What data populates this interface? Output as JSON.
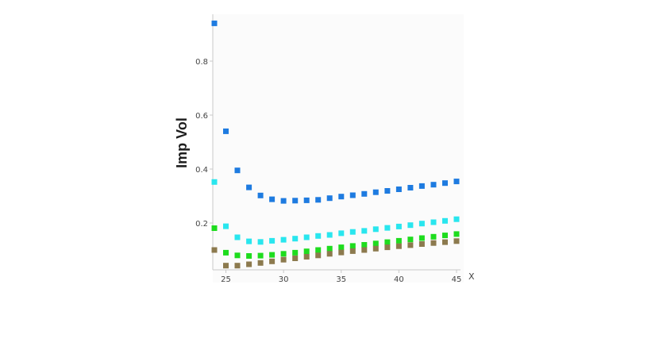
{
  "chart_data": {
    "type": "scatter",
    "title": "",
    "xlabel": "X",
    "ylabel": "Imp Vol",
    "xlim": [
      24,
      45
    ],
    "ylim": [
      0.03,
      0.95
    ],
    "x_ticks": [
      "25",
      "30",
      "35",
      "40",
      "45"
    ],
    "y_ticks": [
      "0.2",
      "0.4",
      "0.6",
      "0.8"
    ],
    "grid": false,
    "legend": "none",
    "marker": "square",
    "series": [
      {
        "color": "#1e7be0",
        "points": [
          [
            24,
            0.94
          ],
          [
            25,
            0.54
          ],
          [
            26,
            0.395
          ],
          [
            27,
            0.332
          ],
          [
            28,
            0.302
          ],
          [
            29,
            0.288
          ],
          [
            30,
            0.282
          ],
          [
            31,
            0.283
          ],
          [
            32,
            0.284
          ],
          [
            33,
            0.286
          ],
          [
            34,
            0.292
          ],
          [
            35,
            0.298
          ],
          [
            36,
            0.303
          ],
          [
            37,
            0.308
          ],
          [
            38,
            0.314
          ],
          [
            39,
            0.319
          ],
          [
            40,
            0.325
          ],
          [
            41,
            0.331
          ],
          [
            42,
            0.337
          ],
          [
            43,
            0.342
          ],
          [
            44,
            0.348
          ],
          [
            45,
            0.354
          ]
        ]
      },
      {
        "color": "#29e6ee",
        "points": [
          [
            24,
            0.352
          ],
          [
            25,
            0.188
          ],
          [
            26,
            0.147
          ],
          [
            27,
            0.132
          ],
          [
            28,
            0.13
          ],
          [
            29,
            0.134
          ],
          [
            30,
            0.138
          ],
          [
            31,
            0.142
          ],
          [
            32,
            0.147
          ],
          [
            33,
            0.152
          ],
          [
            34,
            0.156
          ],
          [
            35,
            0.162
          ],
          [
            36,
            0.167
          ],
          [
            37,
            0.171
          ],
          [
            38,
            0.177
          ],
          [
            39,
            0.182
          ],
          [
            40,
            0.187
          ],
          [
            41,
            0.192
          ],
          [
            42,
            0.198
          ],
          [
            43,
            0.203
          ],
          [
            44,
            0.208
          ],
          [
            45,
            0.214
          ]
        ]
      },
      {
        "color": "#1edc1e",
        "points": [
          [
            24,
            0.181
          ],
          [
            25,
            0.09
          ],
          [
            26,
            0.08
          ],
          [
            27,
            0.078
          ],
          [
            28,
            0.079
          ],
          [
            29,
            0.082
          ],
          [
            30,
            0.086
          ],
          [
            31,
            0.09
          ],
          [
            32,
            0.095
          ],
          [
            33,
            0.1
          ],
          [
            34,
            0.105
          ],
          [
            35,
            0.11
          ],
          [
            36,
            0.115
          ],
          [
            37,
            0.119
          ],
          [
            38,
            0.124
          ],
          [
            39,
            0.129
          ],
          [
            40,
            0.134
          ],
          [
            41,
            0.139
          ],
          [
            42,
            0.144
          ],
          [
            43,
            0.149
          ],
          [
            44,
            0.154
          ],
          [
            45,
            0.159
          ]
        ]
      },
      {
        "color": "#8c7a4e",
        "points": [
          [
            24,
            0.1
          ],
          [
            25,
            0.042
          ],
          [
            26,
            0.042
          ],
          [
            27,
            0.047
          ],
          [
            28,
            0.052
          ],
          [
            29,
            0.058
          ],
          [
            30,
            0.064
          ],
          [
            31,
            0.069
          ],
          [
            32,
            0.075
          ],
          [
            33,
            0.08
          ],
          [
            34,
            0.086
          ],
          [
            35,
            0.091
          ],
          [
            36,
            0.096
          ],
          [
            37,
            0.1
          ],
          [
            38,
            0.105
          ],
          [
            39,
            0.11
          ],
          [
            40,
            0.114
          ],
          [
            41,
            0.118
          ],
          [
            42,
            0.122
          ],
          [
            43,
            0.126
          ],
          [
            44,
            0.129
          ],
          [
            45,
            0.133
          ]
        ]
      }
    ]
  },
  "colors": {
    "axis": "#c8c8c8",
    "plot_background": "#fbfbfb",
    "text": "#444444"
  }
}
